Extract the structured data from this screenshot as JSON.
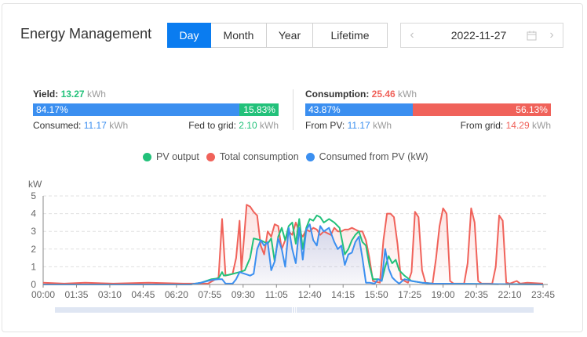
{
  "header": {
    "title": "Energy Management",
    "tabs": [
      {
        "label": "Day",
        "active": true
      },
      {
        "label": "Month",
        "active": false
      },
      {
        "label": "Year",
        "active": false
      },
      {
        "label": "Lifetime",
        "active": false
      }
    ],
    "date_picker": {
      "value": "2022-11-27",
      "prev_icon": "chevron-left-icon",
      "next_icon": "chevron-right-icon",
      "calendar_icon": "calendar-icon"
    }
  },
  "yield": {
    "label": "Yield:",
    "value": "13.27",
    "unit": "kWh",
    "bar": [
      {
        "pct": "84.17%",
        "color": "#3b8ff0"
      },
      {
        "pct": "15.83%",
        "color": "#22c17a"
      }
    ],
    "consumed_label": "Consumed:",
    "consumed_value": "11.17",
    "consumed_unit": "kWh",
    "fed_label": "Fed to grid:",
    "fed_value": "2.10",
    "fed_unit": "kWh"
  },
  "consumption": {
    "label": "Consumption:",
    "value": "25.46",
    "unit": "kWh",
    "bar": [
      {
        "pct": "43.87%",
        "color": "#3b8ff0"
      },
      {
        "pct": "56.13%",
        "color": "#f0625a"
      }
    ],
    "from_pv_label": "From PV:",
    "from_pv_value": "11.17",
    "from_pv_unit": "kWh",
    "from_grid_label": "From grid:",
    "from_grid_value": "14.29",
    "from_grid_unit": "kWh"
  },
  "colors": {
    "accent": "#0a7cf0",
    "pv": "#22c17a",
    "consumption": "#f0625a",
    "consumed_pv": "#3b8ff0"
  },
  "chart_data": {
    "type": "line",
    "title": "",
    "ylabel": "kW",
    "xlabel": "",
    "ylim": [
      0,
      5
    ],
    "yticks": [
      0,
      1,
      2,
      3,
      4,
      5
    ],
    "xticks": [
      "00:00",
      "01:35",
      "03:10",
      "04:45",
      "06:20",
      "07:55",
      "09:30",
      "11:05",
      "12:40",
      "14:15",
      "15:50",
      "17:25",
      "19:00",
      "20:35",
      "22:10",
      "23:45"
    ],
    "grid": true,
    "legend_position": "top",
    "legend": [
      "PV output",
      "Total consumption",
      "Consumed from PV (kW)"
    ],
    "series": [
      {
        "name": "PV output",
        "color": "#22c17a",
        "points": [
          [
            0,
            0
          ],
          [
            420,
            0
          ],
          [
            450,
            0.1
          ],
          [
            480,
            0.3
          ],
          [
            500,
            0.35
          ],
          [
            510,
            0.7
          ],
          [
            515,
            0.5
          ],
          [
            530,
            0.55
          ],
          [
            560,
            0.7
          ],
          [
            575,
            0.8
          ],
          [
            590,
            1.5
          ],
          [
            600,
            2.6
          ],
          [
            620,
            2.5
          ],
          [
            640,
            2.3
          ],
          [
            650,
            2.6
          ],
          [
            660,
            1.3
          ],
          [
            670,
            2.7
          ],
          [
            680,
            3.2
          ],
          [
            690,
            2.5
          ],
          [
            700,
            3.3
          ],
          [
            710,
            3.5
          ],
          [
            720,
            2.3
          ],
          [
            730,
            3.7
          ],
          [
            740,
            2.0
          ],
          [
            750,
            3.2
          ],
          [
            760,
            3.7
          ],
          [
            770,
            3.6
          ],
          [
            780,
            3.9
          ],
          [
            790,
            3.8
          ],
          [
            800,
            3.5
          ],
          [
            815,
            3.7
          ],
          [
            830,
            3.5
          ],
          [
            845,
            3.2
          ],
          [
            860,
            1.7
          ],
          [
            870,
            2.0
          ],
          [
            880,
            2.5
          ],
          [
            890,
            2.8
          ],
          [
            900,
            3.0
          ],
          [
            910,
            2.4
          ],
          [
            920,
            2.2
          ],
          [
            930,
            1.1
          ],
          [
            940,
            0.3
          ],
          [
            955,
            0.3
          ],
          [
            965,
            0.2
          ],
          [
            975,
            1.0
          ],
          [
            985,
            1.6
          ],
          [
            995,
            1.2
          ],
          [
            1005,
            1.4
          ],
          [
            1015,
            0.8
          ],
          [
            1030,
            0.5
          ],
          [
            1050,
            0.2
          ],
          [
            1080,
            0.1
          ],
          [
            1110,
            0.05
          ],
          [
            1425,
            0
          ]
        ]
      },
      {
        "name": "Total consumption",
        "color": "#f0625a",
        "points": [
          [
            0,
            0.1
          ],
          [
            60,
            0.05
          ],
          [
            120,
            0.1
          ],
          [
            200,
            0.05
          ],
          [
            300,
            0.1
          ],
          [
            400,
            0.05
          ],
          [
            470,
            0.05
          ],
          [
            500,
            0.4
          ],
          [
            510,
            3.7
          ],
          [
            520,
            0.5
          ],
          [
            540,
            0.6
          ],
          [
            550,
            1.5
          ],
          [
            560,
            3.6
          ],
          [
            565,
            0.8
          ],
          [
            575,
            3.2
          ],
          [
            580,
            4.5
          ],
          [
            590,
            4.4
          ],
          [
            600,
            4.1
          ],
          [
            610,
            3.9
          ],
          [
            620,
            2.2
          ],
          [
            630,
            1.7
          ],
          [
            640,
            3.0
          ],
          [
            650,
            2.7
          ],
          [
            660,
            3.4
          ],
          [
            670,
            3.3
          ],
          [
            680,
            2.0
          ],
          [
            690,
            2.5
          ],
          [
            700,
            3.0
          ],
          [
            710,
            2.8
          ],
          [
            720,
            3.5
          ],
          [
            730,
            3.0
          ],
          [
            740,
            2.7
          ],
          [
            750,
            3.1
          ],
          [
            760,
            3.0
          ],
          [
            770,
            3.2
          ],
          [
            780,
            3.1
          ],
          [
            790,
            2.8
          ],
          [
            800,
            3.0
          ],
          [
            810,
            2.9
          ],
          [
            820,
            2.8
          ],
          [
            830,
            3.2
          ],
          [
            840,
            3.0
          ],
          [
            850,
            3.0
          ],
          [
            860,
            3.1
          ],
          [
            870,
            3.1
          ],
          [
            880,
            3.2
          ],
          [
            890,
            3.1
          ],
          [
            900,
            3.0
          ],
          [
            910,
            3.0
          ],
          [
            920,
            2.5
          ],
          [
            930,
            1.5
          ],
          [
            940,
            0.2
          ],
          [
            960,
            0.1
          ],
          [
            970,
            2.5
          ],
          [
            980,
            4.0
          ],
          [
            990,
            4.0
          ],
          [
            1000,
            3.8
          ],
          [
            1010,
            2.3
          ],
          [
            1020,
            0.3
          ],
          [
            1040,
            0.1
          ],
          [
            1050,
            0.7
          ],
          [
            1060,
            4.1
          ],
          [
            1070,
            3.8
          ],
          [
            1080,
            0.8
          ],
          [
            1090,
            0.1
          ],
          [
            1110,
            0.05
          ],
          [
            1120,
            1.5
          ],
          [
            1130,
            3.3
          ],
          [
            1140,
            4.3
          ],
          [
            1150,
            4.0
          ],
          [
            1160,
            0.2
          ],
          [
            1170,
            0.05
          ],
          [
            1180,
            0.05
          ],
          [
            1200,
            0.05
          ],
          [
            1210,
            1.2
          ],
          [
            1220,
            4.3
          ],
          [
            1230,
            3.5
          ],
          [
            1240,
            0.2
          ],
          [
            1250,
            0.05
          ],
          [
            1280,
            0.05
          ],
          [
            1290,
            1.0
          ],
          [
            1300,
            3.9
          ],
          [
            1310,
            3.6
          ],
          [
            1320,
            0.1
          ],
          [
            1330,
            0.05
          ],
          [
            1350,
            0.2
          ],
          [
            1360,
            0.05
          ],
          [
            1380,
            0.1
          ],
          [
            1425,
            0.05
          ]
        ]
      },
      {
        "name": "Consumed from PV (kW)",
        "color": "#3b8ff0",
        "fill": true,
        "points": [
          [
            0,
            0
          ],
          [
            420,
            0
          ],
          [
            450,
            0.1
          ],
          [
            480,
            0.25
          ],
          [
            500,
            0.3
          ],
          [
            510,
            0.3
          ],
          [
            520,
            0.05
          ],
          [
            540,
            0.05
          ],
          [
            550,
            0.3
          ],
          [
            560,
            0.7
          ],
          [
            575,
            0.6
          ],
          [
            590,
            0.5
          ],
          [
            600,
            0.6
          ],
          [
            610,
            2.0
          ],
          [
            620,
            2.5
          ],
          [
            630,
            2.2
          ],
          [
            640,
            2.4
          ],
          [
            650,
            0.8
          ],
          [
            660,
            1.3
          ],
          [
            670,
            2.6
          ],
          [
            680,
            2.0
          ],
          [
            690,
            1.0
          ],
          [
            700,
            3.2
          ],
          [
            710,
            2.0
          ],
          [
            720,
            1.2
          ],
          [
            730,
            3.2
          ],
          [
            740,
            1.4
          ],
          [
            750,
            3.1
          ],
          [
            760,
            3.4
          ],
          [
            770,
            2.5
          ],
          [
            780,
            2.2
          ],
          [
            790,
            3.3
          ],
          [
            800,
            3.0
          ],
          [
            815,
            3.2
          ],
          [
            830,
            2.4
          ],
          [
            840,
            2.0
          ],
          [
            850,
            2.2
          ],
          [
            860,
            1.1
          ],
          [
            870,
            1.7
          ],
          [
            880,
            1.8
          ],
          [
            890,
            2.4
          ],
          [
            900,
            2.7
          ],
          [
            910,
            1.5
          ],
          [
            920,
            0.1
          ],
          [
            930,
            0.1
          ],
          [
            945,
            0.05
          ],
          [
            955,
            0.3
          ],
          [
            965,
            0.2
          ],
          [
            975,
            2.0
          ],
          [
            985,
            0.9
          ],
          [
            995,
            0.4
          ],
          [
            1005,
            0.2
          ],
          [
            1015,
            0.05
          ],
          [
            1030,
            0.3
          ],
          [
            1050,
            0.2
          ],
          [
            1080,
            0.1
          ],
          [
            1110,
            0.05
          ],
          [
            1425,
            0
          ]
        ]
      }
    ]
  },
  "zoom_slider": {
    "label": "data-zoom-slider"
  }
}
